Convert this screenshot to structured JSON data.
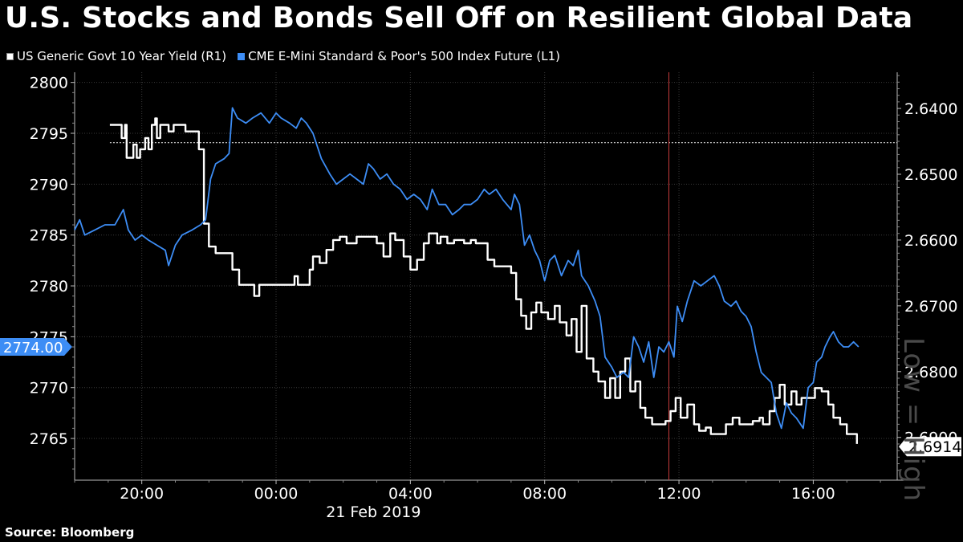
{
  "title": "U.S. Stocks and Bonds Sell Off on Resilient Global Data",
  "source": "Source:  Bloomberg",
  "watermark": "Low = High",
  "legend": {
    "yield_label": "US Generic Govt 10 Year Yield  (R1)",
    "futures_label": "CME E-Mini Standard & Poor's 500 Index Future  (L1)"
  },
  "colors": {
    "yield": "#ffffff",
    "futures": "#3d8df5",
    "marker": "#c83c3c",
    "background": "#000000"
  },
  "chart_data": {
    "type": "line",
    "date_label": "21 Feb 2019",
    "x_ticks": [
      "20:00",
      "00:00",
      "04:00",
      "08:00",
      "12:00",
      "16:00"
    ],
    "x_tick_hours": [
      20,
      24,
      28,
      32,
      36,
      40
    ],
    "x_range_hours": [
      18,
      42.5
    ],
    "event_line_hour": 35.7,
    "left_axis": {
      "ticks": [
        2800,
        2795,
        2790,
        2785,
        2780,
        2775,
        2770,
        2765
      ],
      "range": [
        2760.9,
        2801
      ]
    },
    "right_axis": {
      "ticks": [
        "2.6400",
        "2.6500",
        "2.6600",
        "2.6700",
        "2.6800",
        "2.6900"
      ],
      "ticks_num": [
        2.64,
        2.65,
        2.66,
        2.67,
        2.68,
        2.69
      ],
      "range": [
        2.6345,
        2.6965
      ],
      "inverted": true
    },
    "last_futures_label": "2774.00",
    "last_futures_value": 2774,
    "last_yield_label": "2.6914",
    "last_yield_value": 2.6914,
    "prev_close_yield": 2.6452,
    "series": [
      {
        "name": "US Generic Govt 10 Year Yield  (R1)",
        "axis": "right",
        "points": [
          [
            19.05,
            2.6425
          ],
          [
            19.3,
            2.6425
          ],
          [
            19.4,
            2.6445
          ],
          [
            19.5,
            2.6425
          ],
          [
            19.55,
            2.6475
          ],
          [
            19.7,
            2.6475
          ],
          [
            19.75,
            2.6455
          ],
          [
            19.85,
            2.6475
          ],
          [
            19.95,
            2.6462
          ],
          [
            20.1,
            2.6445
          ],
          [
            20.2,
            2.6462
          ],
          [
            20.3,
            2.6425
          ],
          [
            20.4,
            2.6415
          ],
          [
            20.45,
            2.6445
          ],
          [
            20.55,
            2.6425
          ],
          [
            20.7,
            2.6425
          ],
          [
            20.8,
            2.6435
          ],
          [
            20.95,
            2.6425
          ],
          [
            21.3,
            2.6435
          ],
          [
            21.55,
            2.6435
          ],
          [
            21.7,
            2.6462
          ],
          [
            21.85,
            2.6575
          ],
          [
            22.0,
            2.661
          ],
          [
            22.2,
            2.662
          ],
          [
            22.5,
            2.662
          ],
          [
            22.7,
            2.6645
          ],
          [
            22.9,
            2.6668
          ],
          [
            23.2,
            2.6668
          ],
          [
            23.35,
            2.6685
          ],
          [
            23.5,
            2.6668
          ],
          [
            23.9,
            2.6668
          ],
          [
            24.15,
            2.6668
          ],
          [
            24.3,
            2.6668
          ],
          [
            24.4,
            2.6668
          ],
          [
            24.5,
            2.6668
          ],
          [
            24.55,
            2.6655
          ],
          [
            24.65,
            2.6668
          ],
          [
            24.85,
            2.6668
          ],
          [
            25.0,
            2.6645
          ],
          [
            25.1,
            2.6625
          ],
          [
            25.3,
            2.6635
          ],
          [
            25.5,
            2.6615
          ],
          [
            25.7,
            2.66
          ],
          [
            25.9,
            2.6595
          ],
          [
            26.1,
            2.6605
          ],
          [
            26.4,
            2.6595
          ],
          [
            26.7,
            2.6595
          ],
          [
            27.0,
            2.6605
          ],
          [
            27.2,
            2.6625
          ],
          [
            27.4,
            2.659
          ],
          [
            27.55,
            2.66
          ],
          [
            27.8,
            2.6625
          ],
          [
            28.0,
            2.6645
          ],
          [
            28.2,
            2.663
          ],
          [
            28.4,
            2.6605
          ],
          [
            28.55,
            2.659
          ],
          [
            28.8,
            2.6605
          ],
          [
            28.9,
            2.6595
          ],
          [
            29.1,
            2.6605
          ],
          [
            29.3,
            2.66
          ],
          [
            29.6,
            2.6605
          ],
          [
            29.8,
            2.66
          ],
          [
            29.95,
            2.6605
          ],
          [
            30.15,
            2.6605
          ],
          [
            30.3,
            2.663
          ],
          [
            30.5,
            2.664
          ],
          [
            30.7,
            2.664
          ],
          [
            31.0,
            2.665
          ],
          [
            31.15,
            2.669
          ],
          [
            31.3,
            2.6715
          ],
          [
            31.45,
            2.6735
          ],
          [
            31.6,
            2.671
          ],
          [
            31.75,
            2.6695
          ],
          [
            31.9,
            2.671
          ],
          [
            32.1,
            2.672
          ],
          [
            32.3,
            2.67
          ],
          [
            32.45,
            2.6725
          ],
          [
            32.65,
            2.6745
          ],
          [
            32.8,
            2.672
          ],
          [
            32.95,
            2.677
          ],
          [
            33.1,
            2.67
          ],
          [
            33.25,
            2.678
          ],
          [
            33.45,
            2.68
          ],
          [
            33.6,
            2.6815
          ],
          [
            33.8,
            2.684
          ],
          [
            33.95,
            2.681
          ],
          [
            34.1,
            2.684
          ],
          [
            34.25,
            2.68
          ],
          [
            34.4,
            2.678
          ],
          [
            34.55,
            2.683
          ],
          [
            34.7,
            2.6815
          ],
          [
            34.85,
            2.6855
          ],
          [
            35.0,
            2.687
          ],
          [
            35.2,
            2.688
          ],
          [
            35.4,
            2.688
          ],
          [
            35.6,
            2.6875
          ],
          [
            35.75,
            2.686
          ],
          [
            35.9,
            2.684
          ],
          [
            36.05,
            2.687
          ],
          [
            36.25,
            2.685
          ],
          [
            36.45,
            2.688
          ],
          [
            36.6,
            2.689
          ],
          [
            36.8,
            2.6885
          ],
          [
            36.95,
            2.6895
          ],
          [
            37.2,
            2.6895
          ],
          [
            37.4,
            2.688
          ],
          [
            37.6,
            2.687
          ],
          [
            37.8,
            2.688
          ],
          [
            38.0,
            2.688
          ],
          [
            38.2,
            2.6875
          ],
          [
            38.4,
            2.687
          ],
          [
            38.5,
            2.688
          ],
          [
            38.7,
            2.686
          ],
          [
            38.85,
            2.684
          ],
          [
            39.0,
            2.682
          ],
          [
            39.15,
            2.685
          ],
          [
            39.35,
            2.683
          ],
          [
            39.5,
            2.685
          ],
          [
            39.65,
            2.684
          ],
          [
            39.85,
            2.684
          ],
          [
            40.05,
            2.6825
          ],
          [
            40.25,
            2.683
          ],
          [
            40.45,
            2.685
          ],
          [
            40.6,
            2.687
          ],
          [
            40.8,
            2.688
          ],
          [
            41.0,
            2.6895
          ],
          [
            41.2,
            2.6895
          ],
          [
            41.3,
            2.691
          ]
        ]
      },
      {
        "name": "CME E-Mini Standard & Poor's 500 Index Future  (L1)",
        "axis": "left",
        "points": [
          [
            18.0,
            2785.5
          ],
          [
            18.15,
            2786.5
          ],
          [
            18.3,
            2785.0
          ],
          [
            18.6,
            2785.5
          ],
          [
            18.9,
            2786.0
          ],
          [
            19.2,
            2786.0
          ],
          [
            19.45,
            2787.5
          ],
          [
            19.6,
            2785.5
          ],
          [
            19.8,
            2784.5
          ],
          [
            20.0,
            2785.0
          ],
          [
            20.2,
            2784.5
          ],
          [
            20.45,
            2784.0
          ],
          [
            20.7,
            2783.5
          ],
          [
            20.8,
            2782.0
          ],
          [
            21.0,
            2784.0
          ],
          [
            21.2,
            2785.0
          ],
          [
            21.5,
            2785.5
          ],
          [
            21.75,
            2786.0
          ],
          [
            21.9,
            2786.5
          ],
          [
            22.05,
            2790.5
          ],
          [
            22.2,
            2792.0
          ],
          [
            22.45,
            2792.5
          ],
          [
            22.6,
            2793.0
          ],
          [
            22.7,
            2797.5
          ],
          [
            22.85,
            2796.5
          ],
          [
            23.1,
            2796.0
          ],
          [
            23.3,
            2796.5
          ],
          [
            23.55,
            2797.0
          ],
          [
            23.8,
            2796.0
          ],
          [
            24.0,
            2797.0
          ],
          [
            24.15,
            2796.5
          ],
          [
            24.4,
            2796.0
          ],
          [
            24.6,
            2795.5
          ],
          [
            24.75,
            2796.5
          ],
          [
            24.9,
            2796.0
          ],
          [
            25.1,
            2795.0
          ],
          [
            25.35,
            2792.5
          ],
          [
            25.6,
            2791.0
          ],
          [
            25.8,
            2790.0
          ],
          [
            26.0,
            2790.5
          ],
          [
            26.2,
            2791.0
          ],
          [
            26.4,
            2790.5
          ],
          [
            26.6,
            2790.0
          ],
          [
            26.75,
            2792.0
          ],
          [
            26.9,
            2791.5
          ],
          [
            27.1,
            2790.5
          ],
          [
            27.3,
            2791.0
          ],
          [
            27.5,
            2790.0
          ],
          [
            27.7,
            2789.5
          ],
          [
            27.9,
            2788.5
          ],
          [
            28.1,
            2789.0
          ],
          [
            28.3,
            2788.5
          ],
          [
            28.5,
            2787.5
          ],
          [
            28.65,
            2789.5
          ],
          [
            28.85,
            2788.0
          ],
          [
            29.05,
            2788.0
          ],
          [
            29.25,
            2787.0
          ],
          [
            29.45,
            2787.5
          ],
          [
            29.6,
            2788.0
          ],
          [
            29.8,
            2788.0
          ],
          [
            30.0,
            2788.5
          ],
          [
            30.2,
            2789.5
          ],
          [
            30.35,
            2789.0
          ],
          [
            30.55,
            2789.5
          ],
          [
            30.75,
            2788.5
          ],
          [
            31.0,
            2787.5
          ],
          [
            31.1,
            2789.0
          ],
          [
            31.25,
            2788.0
          ],
          [
            31.4,
            2784.0
          ],
          [
            31.55,
            2785.0
          ],
          [
            31.7,
            2783.5
          ],
          [
            31.85,
            2782.5
          ],
          [
            32.0,
            2780.5
          ],
          [
            32.15,
            2782.5
          ],
          [
            32.3,
            2783.0
          ],
          [
            32.5,
            2781.0
          ],
          [
            32.7,
            2782.5
          ],
          [
            32.85,
            2782.0
          ],
          [
            33.0,
            2783.5
          ],
          [
            33.1,
            2781.0
          ],
          [
            33.3,
            2780.0
          ],
          [
            33.5,
            2778.5
          ],
          [
            33.65,
            2777.0
          ],
          [
            33.8,
            2773.0
          ],
          [
            34.0,
            2772.0
          ],
          [
            34.15,
            2771.0
          ],
          [
            34.35,
            2771.5
          ],
          [
            34.5,
            2771.0
          ],
          [
            34.65,
            2775.0
          ],
          [
            34.8,
            2774.0
          ],
          [
            34.95,
            2772.5
          ],
          [
            35.1,
            2774.5
          ],
          [
            35.25,
            2771.0
          ],
          [
            35.4,
            2774.0
          ],
          [
            35.55,
            2773.5
          ],
          [
            35.7,
            2774.5
          ],
          [
            35.85,
            2773.0
          ],
          [
            35.95,
            2778.0
          ],
          [
            36.1,
            2776.5
          ],
          [
            36.25,
            2778.5
          ],
          [
            36.45,
            2780.5
          ],
          [
            36.65,
            2780.0
          ],
          [
            36.85,
            2780.5
          ],
          [
            37.05,
            2781.0
          ],
          [
            37.2,
            2780.0
          ],
          [
            37.35,
            2778.5
          ],
          [
            37.55,
            2778.0
          ],
          [
            37.7,
            2778.5
          ],
          [
            37.85,
            2777.5
          ],
          [
            38.0,
            2777.0
          ],
          [
            38.15,
            2776.0
          ],
          [
            38.3,
            2773.5
          ],
          [
            38.45,
            2771.5
          ],
          [
            38.6,
            2771.0
          ],
          [
            38.75,
            2770.5
          ],
          [
            38.9,
            2767.5
          ],
          [
            39.05,
            2766.0
          ],
          [
            39.2,
            2768.5
          ],
          [
            39.35,
            2767.5
          ],
          [
            39.5,
            2767.0
          ],
          [
            39.7,
            2766.0
          ],
          [
            39.85,
            2770.0
          ],
          [
            40.0,
            2770.5
          ],
          [
            40.1,
            2772.5
          ],
          [
            40.25,
            2773.0
          ],
          [
            40.35,
            2774.0
          ],
          [
            40.5,
            2775.0
          ],
          [
            40.6,
            2775.5
          ],
          [
            40.75,
            2774.5
          ],
          [
            40.9,
            2774.0
          ],
          [
            41.05,
            2774.0
          ],
          [
            41.2,
            2774.5
          ],
          [
            41.35,
            2774.0
          ]
        ]
      }
    ]
  }
}
